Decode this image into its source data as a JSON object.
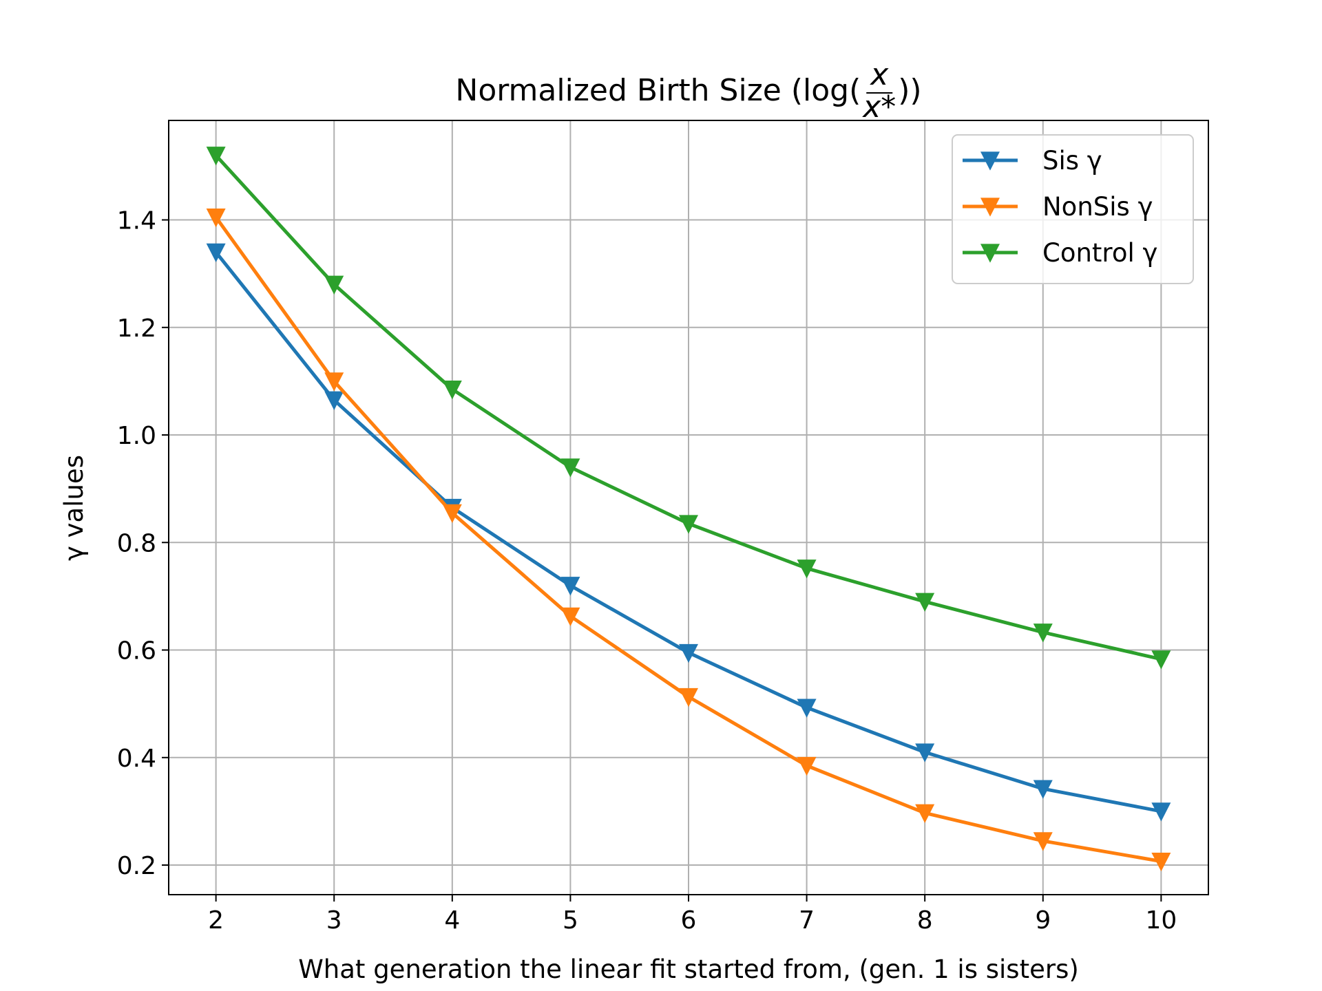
{
  "chart_data": {
    "type": "line",
    "title_main": "Normalized Birth Size (log(",
    "title_frac_num": "x",
    "title_frac_den": "x*",
    "title_close": "))",
    "xlabel": "What generation the linear fit started from, (gen. 1 is sisters)",
    "ylabel": "γ values",
    "x": [
      2,
      3,
      4,
      5,
      6,
      7,
      8,
      9,
      10
    ],
    "xlim": [
      1.6,
      10.4
    ],
    "ylim": [
      0.145,
      1.585
    ],
    "xticks": [
      "2",
      "3",
      "4",
      "5",
      "6",
      "7",
      "8",
      "9",
      "10"
    ],
    "yticks": [
      "0.2",
      "0.4",
      "0.6",
      "0.8",
      "1.0",
      "1.2",
      "1.4"
    ],
    "grid": true,
    "legend_position": "top-right",
    "marker": "triangle-down",
    "series": [
      {
        "name": "Sis γ",
        "color": "#1f77b4",
        "values": [
          1.34,
          1.065,
          0.865,
          0.72,
          0.595,
          0.493,
          0.41,
          0.342,
          0.3
        ]
      },
      {
        "name": "NonSis γ",
        "color": "#ff7f0e",
        "values": [
          1.405,
          1.1,
          0.855,
          0.663,
          0.513,
          0.385,
          0.297,
          0.245,
          0.207
        ]
      },
      {
        "name": "Control γ",
        "color": "#2ca02c",
        "values": [
          1.52,
          1.28,
          1.085,
          0.94,
          0.835,
          0.752,
          0.69,
          0.633,
          0.583
        ]
      }
    ]
  }
}
